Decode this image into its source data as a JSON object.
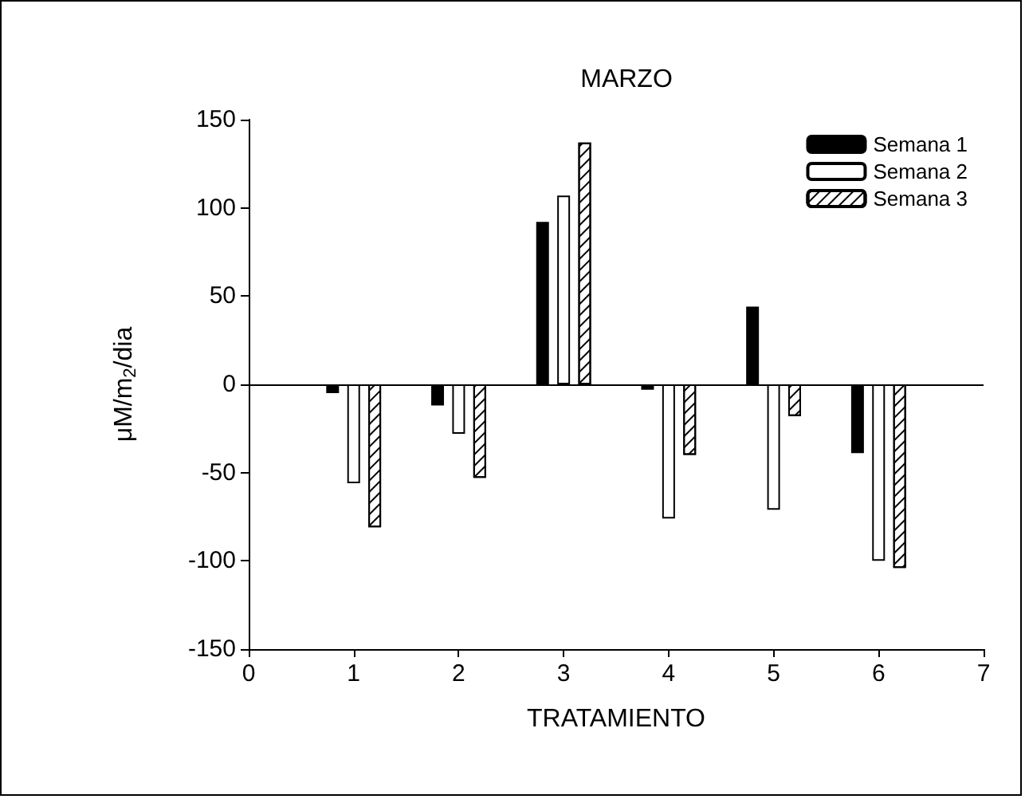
{
  "chart_data": {
    "type": "bar",
    "title": "MARZO",
    "xlabel": "TRATAMIENTO",
    "ylabel": "μM/m$_{2}$/dia",
    "x": [
      1,
      2,
      3,
      4,
      5,
      6
    ],
    "series": [
      {
        "name": "Semana 1",
        "color": "#000000",
        "values": [
          -5,
          -12,
          92,
          -3,
          44,
          -39
        ]
      },
      {
        "name": "Semana 2",
        "color": "#ffffff",
        "values": [
          -56,
          -28,
          107,
          -76,
          -71,
          -100
        ]
      },
      {
        "name": "Semana 3",
        "color": "#ffffff",
        "values": [
          -81,
          -53,
          137,
          -40,
          -18,
          -104
        ]
      }
    ],
    "xlim": [
      0,
      7
    ],
    "xticks": [
      0,
      1,
      2,
      3,
      4,
      5,
      6,
      7
    ],
    "ylim": [
      -150,
      150
    ],
    "yticks": [
      -150,
      -100,
      -50,
      0,
      50,
      100,
      150
    ],
    "ref_lines": [
      {
        "axis": "y",
        "value": 0
      }
    ],
    "grid": false,
    "legend": "top right"
  }
}
